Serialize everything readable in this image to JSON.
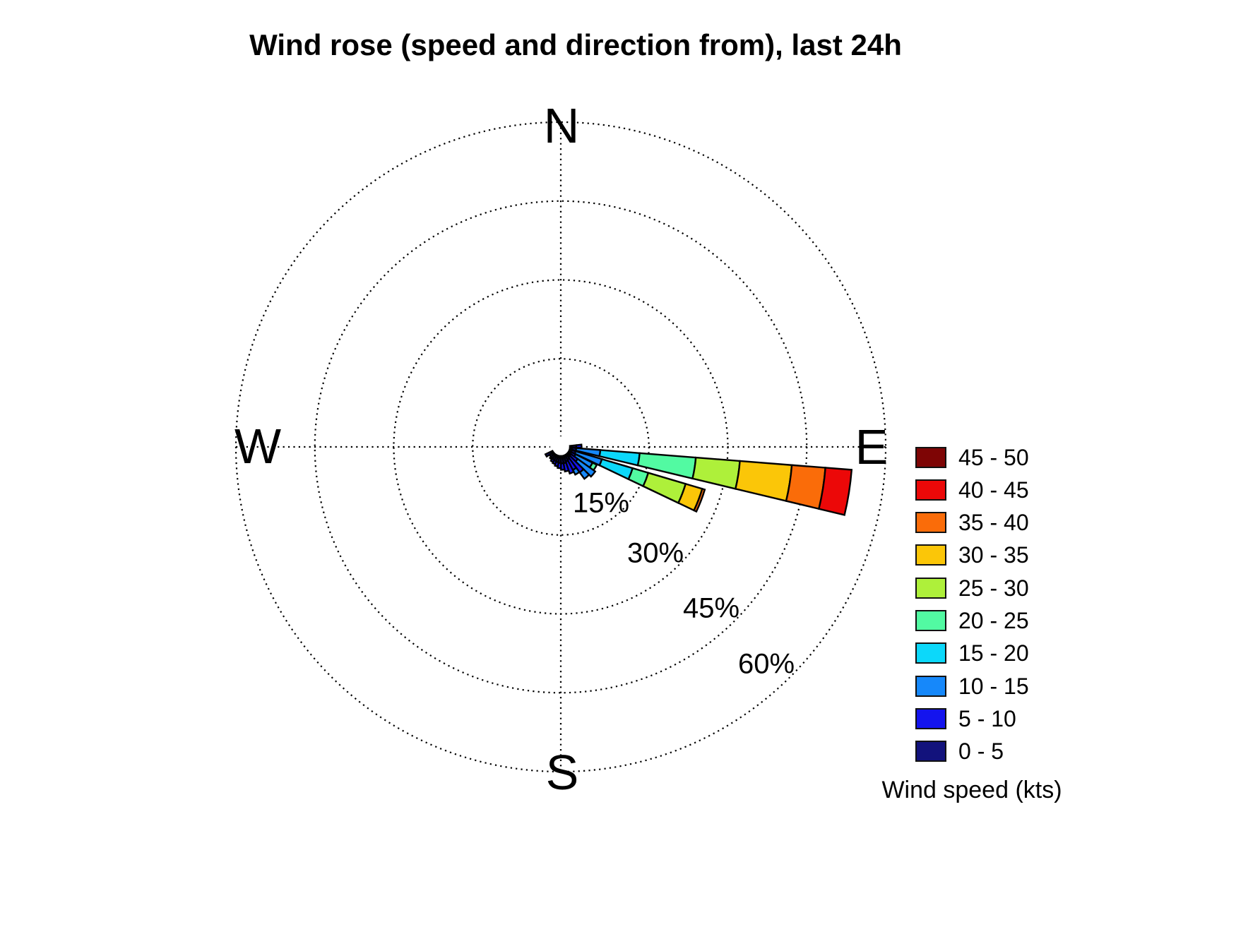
{
  "chart_data": {
    "type": "bar",
    "subtype": "wind_rose_polar_stacked",
    "title": "Wind rose (speed and direction from), last 24h",
    "legend_title": "Wind speed (kts)",
    "legend_position": "right",
    "grid": "dotted",
    "compass": {
      "north": "N",
      "east": "E",
      "south": "S",
      "west": "W"
    },
    "rings": [
      {
        "pct": 15,
        "label": "15%"
      },
      {
        "pct": 30,
        "label": "30%"
      },
      {
        "pct": 45,
        "label": "45%"
      },
      {
        "pct": 60,
        "label": "60%"
      }
    ],
    "radial_axis_max_pct": 60,
    "speed_bins": [
      {
        "label": "0 - 5",
        "color": "#12127C"
      },
      {
        "label": "5 - 10",
        "color": "#1414EE"
      },
      {
        "label": "10 - 15",
        "color": "#1688FA"
      },
      {
        "label": "15 - 20",
        "color": "#0CD8FA"
      },
      {
        "label": "20 - 25",
        "color": "#52FAA2"
      },
      {
        "label": "25 - 30",
        "color": "#AEF03A"
      },
      {
        "label": "30 - 35",
        "color": "#FBC608"
      },
      {
        "label": "35 - 40",
        "color": "#FA6C09"
      },
      {
        "label": "40 - 45",
        "color": "#EC0808"
      },
      {
        "label": "45 - 50",
        "color": "#7E0505"
      }
    ],
    "petals_note": "direction_deg is compass direction wind blows FROM; values are percent frequency per speed bin, stacked outward in bin order",
    "petals": [
      {
        "direction_deg": 88,
        "values": [
          1.2,
          1.0,
          0,
          0,
          0,
          0,
          0,
          0,
          0,
          0
        ]
      },
      {
        "direction_deg": 99,
        "values": [
          0.4,
          0.8,
          4.6,
          7.5,
          10.7,
          8.4,
          9.9,
          6.4,
          5.0,
          0
        ]
      },
      {
        "direction_deg": 111,
        "values": [
          0.4,
          0.8,
          5.2,
          6.1,
          3.1,
          7.4,
          3.3,
          0.5,
          0,
          0
        ]
      },
      {
        "direction_deg": 121,
        "values": [
          0.4,
          1.0,
          3.6,
          0,
          0.9,
          0,
          0,
          0,
          0,
          0
        ]
      },
      {
        "direction_deg": 130,
        "values": [
          0.6,
          1.6,
          4.1,
          0,
          0,
          0,
          0,
          0,
          0,
          0
        ]
      },
      {
        "direction_deg": 139,
        "values": [
          0.7,
          3.6,
          1.5,
          0,
          0,
          0,
          0,
          0,
          0,
          0
        ]
      },
      {
        "direction_deg": 148,
        "values": [
          1.0,
          2.2,
          1.0,
          0,
          0,
          0,
          0,
          0,
          0,
          0
        ]
      },
      {
        "direction_deg": 157,
        "values": [
          1.2,
          2.4,
          0,
          0,
          0,
          0,
          0,
          0,
          0,
          0
        ]
      },
      {
        "direction_deg": 166,
        "values": [
          1.4,
          1.6,
          0,
          0,
          0,
          0,
          0,
          0,
          0,
          0
        ]
      },
      {
        "direction_deg": 175,
        "values": [
          1.4,
          1.2,
          0,
          0,
          0,
          0,
          0,
          0,
          0,
          0
        ]
      },
      {
        "direction_deg": 184,
        "values": [
          1.3,
          1.0,
          0,
          0,
          0,
          0,
          0,
          0,
          0,
          0
        ]
      },
      {
        "direction_deg": 193,
        "values": [
          1.2,
          0.8,
          0,
          0,
          0,
          0,
          0,
          0,
          0,
          0
        ]
      },
      {
        "direction_deg": 202,
        "values": [
          1.1,
          0.6,
          0,
          0,
          0,
          0,
          0,
          0,
          0,
          0
        ]
      },
      {
        "direction_deg": 211,
        "values": [
          1.0,
          0.5,
          0,
          0,
          0,
          0,
          0,
          0,
          0,
          0
        ]
      },
      {
        "direction_deg": 220,
        "values": [
          0.9,
          0.3,
          0,
          0,
          0,
          0,
          0,
          0,
          0,
          0
        ]
      },
      {
        "direction_deg": 229,
        "values": [
          0.9,
          0,
          0,
          0,
          0,
          0,
          0,
          0,
          0,
          0
        ]
      },
      {
        "direction_deg": 240,
        "values": [
          1.5,
          0,
          0,
          0,
          0,
          0,
          0,
          0,
          0,
          0
        ]
      }
    ]
  }
}
